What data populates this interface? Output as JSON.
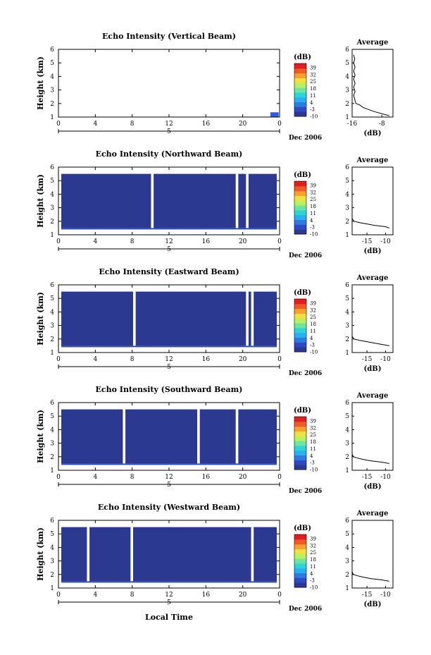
{
  "x_axis_label": "Local Time",
  "date_label": "Dec 2006",
  "date_day": "5",
  "colorbar": {
    "unit": "(dB)",
    "ticks": [
      "39",
      "32",
      "25",
      "18",
      "11",
      "4",
      "-3",
      "-10"
    ],
    "colors": [
      "#2b3990",
      "#2d49c4",
      "#2e7be0",
      "#2ab0f0",
      "#2fd4d4",
      "#6fe3a0",
      "#b8f060",
      "#f0e040",
      "#f8a030",
      "#f05a28",
      "#e02020"
    ]
  },
  "chart_data": [
    {
      "type": "heatmap",
      "title": "Echo Intensity (Vertical Beam)",
      "ylabel": "Height (km)",
      "xlim": [
        0,
        24
      ],
      "ylim": [
        1,
        6
      ],
      "xticks": [
        "0",
        "4",
        "8",
        "12",
        "16",
        "20",
        "0"
      ],
      "yticks": [
        "1",
        "2",
        "3",
        "4",
        "5",
        "6"
      ],
      "profile": {
        "title": "Average",
        "xlabel": "(dB)",
        "xticks": [
          "-16",
          "-8"
        ],
        "xlim": [
          -16,
          -5
        ],
        "x": [
          -6,
          -10,
          -13,
          -14,
          -15,
          -15.3,
          -15.6,
          -15.2,
          -15.6,
          -15.2,
          -15.6,
          -15.2,
          -15.6,
          -15.2,
          -15.6,
          -15.3,
          -15.6
        ],
        "y": [
          1.1,
          1.4,
          1.7,
          1.9,
          2.0,
          2.3,
          2.6,
          2.9,
          3.2,
          3.5,
          3.8,
          4.1,
          4.4,
          4.7,
          5.0,
          5.3,
          5.6
        ]
      }
    },
    {
      "type": "heatmap",
      "title": "Echo Intensity (Northward Beam)",
      "ylabel": "Height (km)",
      "xlim": [
        0,
        24
      ],
      "ylim": [
        1,
        6
      ],
      "xticks": [
        "0",
        "4",
        "8",
        "12",
        "16",
        "20",
        "0"
      ],
      "yticks": [
        "1",
        "2",
        "3",
        "4",
        "5",
        "6"
      ],
      "profile": {
        "title": "Average",
        "xlabel": "(dB)",
        "xticks": [
          "-15",
          "-10"
        ],
        "xlim": [
          -19,
          -8
        ],
        "x": [
          -9,
          -10,
          -13,
          -15,
          -17,
          -18.5,
          -19,
          -19,
          -19,
          -19,
          -19
        ],
        "y": [
          1.5,
          1.6,
          1.7,
          1.8,
          1.9,
          2.0,
          2.2,
          3.0,
          4.0,
          5.0,
          5.6
        ]
      }
    },
    {
      "type": "heatmap",
      "title": "Echo Intensity (Eastward Beam)",
      "ylabel": "Height (km)",
      "xlim": [
        0,
        24
      ],
      "ylim": [
        1,
        6
      ],
      "xticks": [
        "0",
        "4",
        "8",
        "12",
        "16",
        "20",
        "0"
      ],
      "yticks": [
        "1",
        "2",
        "3",
        "4",
        "5",
        "6"
      ],
      "profile": {
        "title": "Average",
        "xlabel": "(dB)",
        "xticks": [
          "-15",
          "-10"
        ],
        "xlim": [
          -19,
          -8
        ],
        "x": [
          -9,
          -11,
          -13,
          -15,
          -17,
          -18.5,
          -19,
          -19,
          -19,
          -19,
          -19
        ],
        "y": [
          1.5,
          1.6,
          1.7,
          1.8,
          1.9,
          2.0,
          2.2,
          3.0,
          4.0,
          5.0,
          5.6
        ]
      }
    },
    {
      "type": "heatmap",
      "title": "Echo Intensity (Southward Beam)",
      "ylabel": "Height (km)",
      "xlim": [
        0,
        24
      ],
      "ylim": [
        1,
        6
      ],
      "xticks": [
        "0",
        "4",
        "8",
        "12",
        "16",
        "20",
        "0"
      ],
      "yticks": [
        "1",
        "2",
        "3",
        "4",
        "5",
        "6"
      ],
      "profile": {
        "title": "Average",
        "xlabel": "(dB)",
        "xticks": [
          "-15",
          "-10"
        ],
        "xlim": [
          -19,
          -8
        ],
        "x": [
          -9,
          -11,
          -14,
          -16,
          -17.5,
          -18.7,
          -19,
          -19,
          -19,
          -19,
          -19
        ],
        "y": [
          1.5,
          1.6,
          1.7,
          1.8,
          1.9,
          2.0,
          2.2,
          3.0,
          4.0,
          5.0,
          5.6
        ]
      }
    },
    {
      "type": "heatmap",
      "title": "Echo Intensity (Westward Beam)",
      "ylabel": "Height (km)",
      "xlim": [
        0,
        24
      ],
      "ylim": [
        1,
        6
      ],
      "xticks": [
        "0",
        "4",
        "8",
        "12",
        "16",
        "20",
        "0"
      ],
      "yticks": [
        "1",
        "2",
        "3",
        "4",
        "5",
        "6"
      ],
      "profile": {
        "title": "Average",
        "xlabel": "(dB)",
        "xticks": [
          "-15",
          "-10"
        ],
        "xlim": [
          -19,
          -8
        ],
        "x": [
          -9,
          -11,
          -14,
          -16,
          -17.5,
          -18.7,
          -19,
          -19,
          -19,
          -19,
          -19
        ],
        "y": [
          1.5,
          1.6,
          1.7,
          1.8,
          1.9,
          2.0,
          2.2,
          3.0,
          4.0,
          5.0,
          5.6
        ]
      }
    }
  ]
}
